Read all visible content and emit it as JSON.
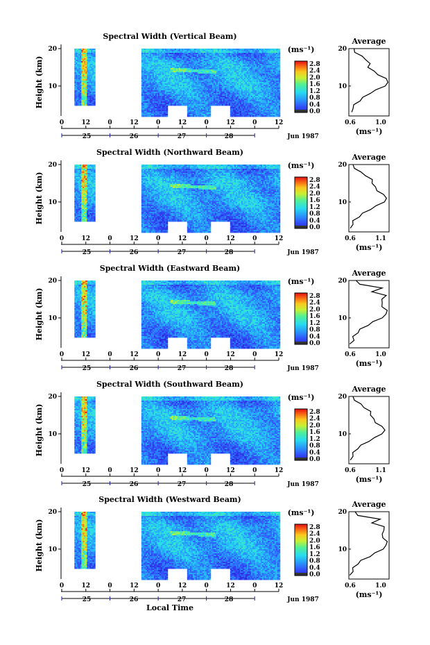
{
  "figure": {
    "xlabel": "Local Time",
    "month_label": "Jun 1987",
    "colorbar_label": "(ms⁻¹)",
    "average_title": "Average",
    "average_xlabel": "(ms⁻¹)",
    "height_label": "Height (km)"
  },
  "chart_data": [
    {
      "type": "heatmap",
      "title": "Spectral Width (Vertical Beam)",
      "ylabel": "Height (km)",
      "ylim": [
        2,
        20
      ],
      "y_ticks": [
        10,
        20
      ],
      "x_tick_labels": [
        "0",
        "12",
        "0",
        "12",
        "0",
        "12",
        "0",
        "12",
        "0",
        "12"
      ],
      "day_labels": [
        "25",
        "26",
        "27",
        "28"
      ],
      "colorbar_ticks": [
        "2.8",
        "2.4",
        "2.0",
        "1.6",
        "1.2",
        "0.8",
        "0.4",
        "0.0"
      ],
      "average": {
        "title": "Average",
        "xlim": [
          0.6,
          1.0
        ],
        "x_ticks": [
          "0.6",
          "1.0"
        ],
        "y_ticks": [
          10,
          20
        ],
        "height": [
          3,
          4,
          5,
          6,
          7,
          8,
          9,
          10,
          11,
          12,
          13,
          14,
          15,
          16,
          17,
          18,
          19,
          20
        ],
        "value": [
          0.64,
          0.63,
          0.66,
          0.7,
          0.75,
          0.8,
          0.88,
          0.95,
          1.0,
          0.96,
          0.9,
          0.84,
          0.8,
          0.8,
          0.78,
          0.72,
          0.67,
          0.64
        ]
      }
    },
    {
      "type": "heatmap",
      "title": "Spectral Width (Northward Beam)",
      "ylabel": "Height (km)",
      "ylim": [
        2,
        20
      ],
      "y_ticks": [
        10,
        20
      ],
      "x_tick_labels": [
        "0",
        "12",
        "0",
        "12",
        "0",
        "12",
        "0",
        "12",
        "0",
        "12"
      ],
      "day_labels": [
        "25",
        "26",
        "27",
        "28"
      ],
      "colorbar_ticks": [
        "2.8",
        "2.4",
        "2.0",
        "1.6",
        "1.2",
        "0.8",
        "0.4",
        "0.0"
      ],
      "average": {
        "title": "Average",
        "xlim": [
          0.6,
          1.1
        ],
        "x_ticks": [
          "0.6",
          "1.1"
        ],
        "y_ticks": [
          10,
          20
        ],
        "height": [
          3,
          4,
          5,
          6,
          7,
          8,
          9,
          10,
          11,
          12,
          13,
          14,
          15,
          16,
          17,
          18,
          19,
          20
        ],
        "value": [
          0.63,
          0.64,
          0.66,
          0.72,
          0.78,
          0.86,
          0.95,
          1.03,
          1.08,
          1.02,
          0.96,
          0.92,
          0.9,
          0.88,
          0.82,
          0.74,
          0.68,
          0.64
        ]
      }
    },
    {
      "type": "heatmap",
      "title": "Spectral Width (Eastward Beam)",
      "ylabel": "Height (km)",
      "ylim": [
        2,
        20
      ],
      "y_ticks": [
        10,
        20
      ],
      "x_tick_labels": [
        "0",
        "12",
        "0",
        "12",
        "0",
        "12",
        "0",
        "12",
        "0",
        "12"
      ],
      "day_labels": [
        "25",
        "26",
        "27",
        "28"
      ],
      "colorbar_ticks": [
        "2.8",
        "2.4",
        "2.0",
        "1.6",
        "1.2",
        "0.8",
        "0.4",
        "0.0"
      ],
      "average": {
        "title": "Average",
        "xlim": [
          0.6,
          1.0
        ],
        "x_ticks": [
          "0.6",
          "1.0"
        ],
        "y_ticks": [
          10,
          20
        ],
        "height": [
          3,
          4,
          5,
          6,
          7,
          8,
          9,
          10,
          11,
          12,
          13,
          14,
          15,
          16,
          17,
          18,
          19,
          20
        ],
        "value": [
          0.62,
          0.64,
          0.65,
          0.68,
          0.72,
          0.78,
          0.85,
          0.92,
          0.98,
          0.97,
          0.94,
          0.92,
          0.94,
          0.96,
          0.84,
          0.92,
          0.72,
          0.66
        ]
      }
    },
    {
      "type": "heatmap",
      "title": "Spectral Width (Southward Beam)",
      "ylabel": "Height (km)",
      "ylim": [
        2,
        20
      ],
      "y_ticks": [
        10,
        20
      ],
      "x_tick_labels": [
        "0",
        "12",
        "0",
        "12",
        "0",
        "12",
        "0",
        "12",
        "0",
        "12"
      ],
      "day_labels": [
        "25",
        "26",
        "27",
        "28"
      ],
      "colorbar_ticks": [
        "2.8",
        "2.4",
        "2.0",
        "1.6",
        "1.2",
        "0.8",
        "0.4",
        "0.0"
      ],
      "average": {
        "title": "Average",
        "xlim": [
          0.6,
          1.1
        ],
        "x_ticks": [
          "0.6",
          "1.1"
        ],
        "y_ticks": [
          10,
          20
        ],
        "height": [
          3,
          4,
          5,
          6,
          7,
          8,
          9,
          10,
          11,
          12,
          13,
          14,
          15,
          16,
          17,
          18,
          19,
          20
        ],
        "value": [
          0.63,
          0.64,
          0.66,
          0.7,
          0.76,
          0.84,
          0.93,
          1.0,
          1.06,
          1.0,
          0.94,
          0.9,
          0.88,
          0.86,
          0.8,
          0.74,
          0.68,
          0.64
        ]
      }
    },
    {
      "type": "heatmap",
      "title": "Spectral Width (Westward Beam)",
      "ylabel": "Height (km)",
      "ylim": [
        2,
        20
      ],
      "y_ticks": [
        10,
        20
      ],
      "x_tick_labels": [
        "0",
        "12",
        "0",
        "12",
        "0",
        "12",
        "0",
        "12",
        "0",
        "12"
      ],
      "day_labels": [
        "25",
        "26",
        "27",
        "28"
      ],
      "colorbar_ticks": [
        "2.8",
        "2.4",
        "2.0",
        "1.6",
        "1.2",
        "0.8",
        "0.4",
        "0.0"
      ],
      "average": {
        "title": "Average",
        "xlim": [
          0.6,
          1.0
        ],
        "x_ticks": [
          "0.6",
          "1.0"
        ],
        "y_ticks": [
          10,
          20
        ],
        "height": [
          3,
          4,
          5,
          6,
          7,
          8,
          9,
          10,
          11,
          12,
          13,
          14,
          15,
          16,
          17,
          18,
          19,
          20
        ],
        "value": [
          0.62,
          0.63,
          0.65,
          0.68,
          0.73,
          0.8,
          0.87,
          0.93,
          0.98,
          0.97,
          0.95,
          0.92,
          0.96,
          0.94,
          0.84,
          0.9,
          0.7,
          0.65
        ]
      }
    }
  ]
}
